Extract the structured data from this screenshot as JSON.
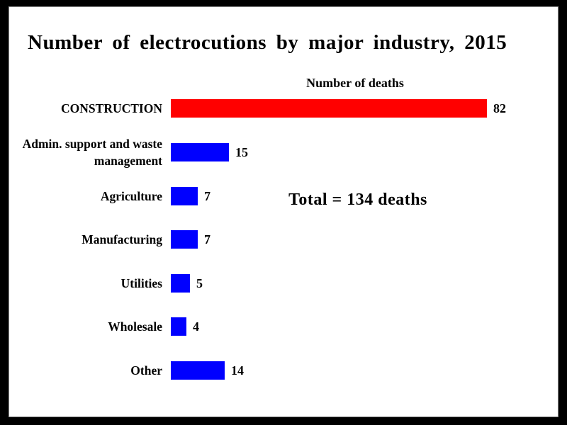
{
  "frame": {
    "background": "#000000",
    "canvas_background": "#ffffff"
  },
  "chart_data": {
    "type": "bar",
    "orientation": "horizontal",
    "title": "Number of electrocutions by major industry, 2015",
    "value_axis_title": "Number of deaths",
    "annotation": "Total = 134 deaths",
    "categories": [
      "CONSTRUCTION",
      "Admin. support and waste management",
      "Agriculture",
      "Manufacturing",
      "Utilities",
      "Wholesale",
      "Other"
    ],
    "values": [
      82,
      15,
      7,
      7,
      5,
      4,
      14
    ],
    "bar_colors": [
      "#ff0000",
      "#0000ff",
      "#0000ff",
      "#0000ff",
      "#0000ff",
      "#0000ff",
      "#0000ff"
    ],
    "highlight_color": "#ff0000",
    "base_color": "#0000ff",
    "xlim": [
      0,
      82
    ],
    "total_deaths": 134,
    "grid": false,
    "legend": "none"
  }
}
